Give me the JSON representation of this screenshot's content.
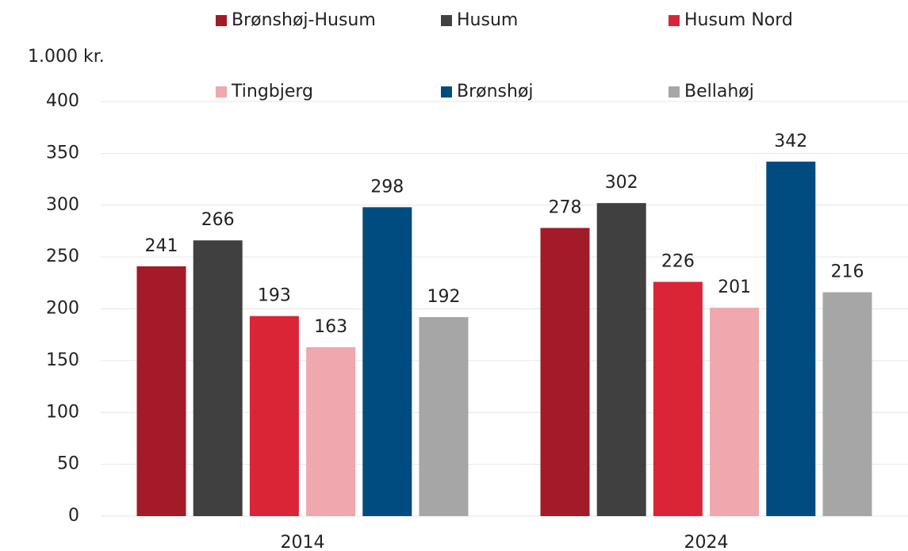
{
  "chart_data": {
    "type": "bar",
    "y_label": "1.000 kr.",
    "categories": [
      "2014",
      "2024"
    ],
    "series": [
      {
        "name": "Brønshøj-Husum",
        "color": "#a31a28",
        "values": [
          241,
          278
        ]
      },
      {
        "name": "Husum",
        "color": "#404040",
        "values": [
          266,
          302
        ]
      },
      {
        "name": "Husum Nord",
        "color": "#d92536",
        "values": [
          193,
          226
        ]
      },
      {
        "name": "Tingbjerg",
        "color": "#f0a7ae",
        "values": [
          163,
          201
        ]
      },
      {
        "name": "Brønshøj",
        "color": "#004b7f",
        "values": [
          298,
          342
        ]
      },
      {
        "name": "Bellahøj",
        "color": "#a6a6a6",
        "values": [
          192,
          216
        ]
      }
    ],
    "ylim": [
      0,
      400
    ],
    "yticks": [
      0,
      50,
      100,
      150,
      200,
      250,
      300,
      350,
      400
    ],
    "grid": true,
    "legend": "top"
  }
}
